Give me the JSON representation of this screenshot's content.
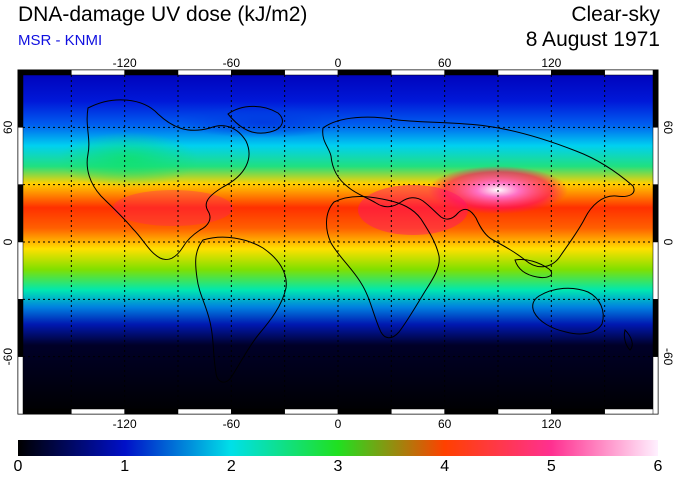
{
  "header": {
    "title": "DNA-damage UV dose (kJ/m2)",
    "subtitle": "MSR - KNMI",
    "sky_condition": "Clear-sky",
    "date": "8 August 1971"
  },
  "map": {
    "projection": "equirectangular",
    "lon_range": [
      -180,
      180
    ],
    "lat_range": [
      -90,
      90
    ],
    "top_axis_labels": [
      "-120",
      "-60",
      "0",
      "60",
      "120"
    ],
    "bottom_axis_labels": [
      "-120",
      "-60",
      "0",
      "60",
      "120"
    ],
    "left_axis_labels": [
      "60",
      "0",
      "-60"
    ],
    "right_axis_labels": [
      "60",
      "0",
      "-60"
    ],
    "gridlines": "dotted",
    "coastline_color": "#000000"
  },
  "colorbar": {
    "min": 0,
    "max": 6,
    "labels": [
      "0",
      "1",
      "2",
      "3",
      "4",
      "5",
      "6"
    ],
    "colors": [
      "#000000",
      "#0010c8",
      "#00e0e8",
      "#20e020",
      "#ff4000",
      "#ff3090",
      "#fff0ff"
    ]
  }
}
